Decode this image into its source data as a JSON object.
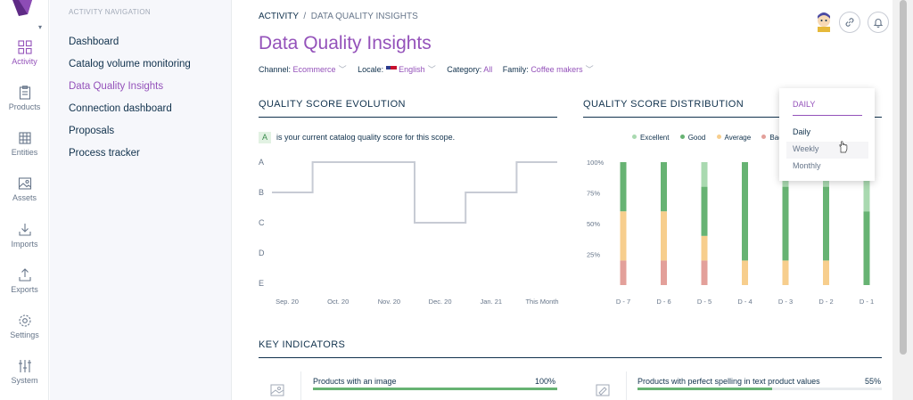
{
  "rail": {
    "items": [
      {
        "label": "Activity",
        "icon": "grid-icon"
      },
      {
        "label": "Products",
        "icon": "clipboard-icon"
      },
      {
        "label": "Entities",
        "icon": "table-icon"
      },
      {
        "label": "Assets",
        "icon": "image-icon"
      },
      {
        "label": "Imports",
        "icon": "import-icon"
      },
      {
        "label": "Exports",
        "icon": "export-icon"
      },
      {
        "label": "Settings",
        "icon": "gear-icon"
      },
      {
        "label": "System",
        "icon": "sliders-icon"
      }
    ]
  },
  "subnav": {
    "title": "ACTIVITY NAVIGATION",
    "items": [
      "Dashboard",
      "Catalog volume monitoring",
      "Data Quality Insights",
      "Connection dashboard",
      "Proposals",
      "Process tracker"
    ]
  },
  "breadcrumb": {
    "root": "ACTIVITY",
    "separator": "/",
    "current": "DATA QUALITY INSIGHTS"
  },
  "page_title": "Data Quality Insights",
  "filters": {
    "channel_label": "Channel:",
    "channel_value": "Ecommerce",
    "locale_label": "Locale:",
    "locale_value": "English",
    "category_label": "Category:",
    "category_value": "All",
    "family_label": "Family:",
    "family_value": "Coffee makers"
  },
  "evolution": {
    "title": "QUALITY SCORE EVOLUTION",
    "score": "A",
    "score_note": "is your current catalog quality score for this scope."
  },
  "distribution": {
    "title": "QUALITY SCORE DISTRIBUTION",
    "legend": [
      "Excellent",
      "Good",
      "Average",
      "Bad"
    ]
  },
  "dropdown": {
    "selected": "DAILY",
    "options": [
      "Daily",
      "Weekly",
      "Monthly"
    ]
  },
  "key_indicators": {
    "title": "KEY INDICATORS",
    "items": [
      {
        "label": "Products with an image",
        "value": "100%",
        "progress": 1.0
      },
      {
        "label": "Products with perfect spelling in text product values",
        "value": "55%",
        "progress": 0.55
      }
    ]
  },
  "colors": {
    "accent": "#9452ba",
    "excellent": "#a9d9b0",
    "good": "#67b373",
    "average": "#f7ce8d",
    "bad": "#e3a09a",
    "line": "#c7cbd4"
  },
  "chart_data": [
    {
      "type": "line",
      "title": "QUALITY SCORE EVOLUTION",
      "x": [
        "Sep. 20",
        "Oct. 20",
        "Nov. 20",
        "Dec. 20",
        "Jan. 21",
        "This Month"
      ],
      "y_categories": [
        "A",
        "B",
        "C",
        "D",
        "E"
      ],
      "step_points": [
        {
          "x": "Sep. 20",
          "y": "B"
        },
        {
          "x": "Oct. 20",
          "y": "A"
        },
        {
          "x": "Nov. 20",
          "y": "A"
        },
        {
          "x": "Dec. 20",
          "y": "C"
        },
        {
          "x": "Jan. 21",
          "y": "B"
        },
        {
          "x": "This Month",
          "y": "A"
        }
      ],
      "grid": false
    },
    {
      "type": "bar",
      "stacked": true,
      "title": "QUALITY SCORE DISTRIBUTION",
      "categories": [
        "D - 7",
        "D - 6",
        "D - 5",
        "D - 4",
        "D - 3",
        "D - 2",
        "D - 1"
      ],
      "yticks": [
        "25%",
        "50%",
        "75%",
        "100%"
      ],
      "ylim": [
        0,
        100
      ],
      "series": [
        {
          "name": "Bad",
          "values": [
            20,
            20,
            20,
            0,
            0,
            0,
            0
          ]
        },
        {
          "name": "Average",
          "values": [
            40,
            40,
            20,
            20,
            20,
            20,
            0
          ]
        },
        {
          "name": "Good",
          "values": [
            40,
            40,
            40,
            80,
            60,
            60,
            60
          ]
        },
        {
          "name": "Excellent",
          "values": [
            0,
            0,
            20,
            0,
            20,
            20,
            40
          ]
        }
      ],
      "legend_position": "top"
    }
  ]
}
